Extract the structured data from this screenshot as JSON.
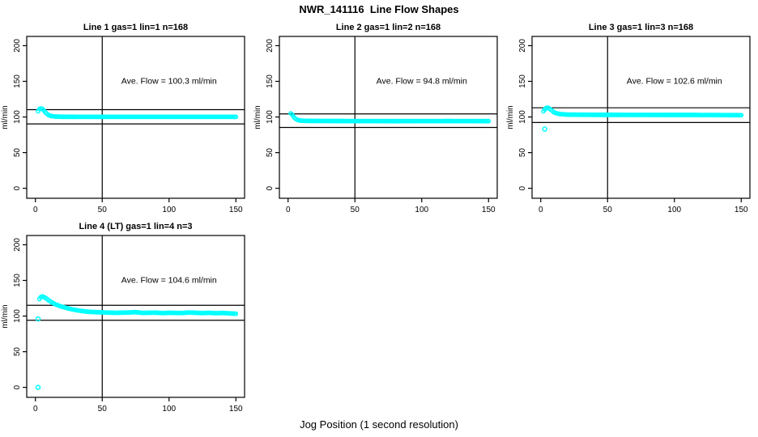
{
  "title": "NWR_141116  Line Flow Shapes",
  "xlabel": "Jog Position (1 second resolution)",
  "colors": {
    "points": "#00FFFF",
    "axis": "#000000",
    "background": "#FFFFFF"
  },
  "chart_data": {
    "type": "scatter",
    "ylabel": "ml/min",
    "x_ticks": [
      0,
      50,
      100,
      150
    ],
    "y_ticks": [
      0,
      50,
      100,
      150,
      200
    ],
    "xlim": [
      -6.5,
      156.5
    ],
    "ylim": [
      -14,
      213
    ],
    "vline_x": 50,
    "annotation_anchor": {
      "x": 100,
      "y": 150
    },
    "panels": [
      {
        "title": "Line 1 gas=1 lin=1 n=168",
        "annotation": "Ave. Flow =  100.3  ml/min",
        "ave_flow": 100.3,
        "n": 168,
        "ref_lines": [
          110.3,
          90.3
        ],
        "outliers": [],
        "curve": [
          [
            2,
            108
          ],
          [
            3,
            111
          ],
          [
            4,
            112
          ],
          [
            5,
            111.5
          ],
          [
            6,
            110
          ],
          [
            7,
            107.5
          ],
          [
            8,
            105.5
          ],
          [
            9,
            104
          ],
          [
            10,
            102.5
          ],
          [
            12,
            101.3
          ],
          [
            15,
            100.6
          ],
          [
            20,
            100.3
          ],
          [
            40,
            100.2
          ],
          [
            80,
            100.2
          ],
          [
            120,
            100.2
          ],
          [
            150,
            100.2
          ]
        ]
      },
      {
        "title": "Line 2 gas=1 lin=2 n=168",
        "annotation": "Ave. Flow =  94.8  ml/min",
        "ave_flow": 94.8,
        "n": 168,
        "ref_lines": [
          104.3,
          85.3
        ],
        "outliers": [],
        "curve": [
          [
            2,
            105
          ],
          [
            3,
            103.5
          ],
          [
            4,
            100.5
          ],
          [
            5,
            98.5
          ],
          [
            6,
            97
          ],
          [
            7,
            96
          ],
          [
            8,
            95.3
          ],
          [
            10,
            94.8
          ],
          [
            15,
            94.5
          ],
          [
            40,
            94.3
          ],
          [
            80,
            94.2
          ],
          [
            120,
            94.3
          ],
          [
            150,
            94.2
          ]
        ]
      },
      {
        "title": "Line 3 gas=1 lin=3 n=168",
        "annotation": "Ave. Flow =  102.6  ml/min",
        "ave_flow": 102.6,
        "n": 168,
        "ref_lines": [
          112.9,
          92.3
        ],
        "outliers": [
          [
            3,
            83
          ]
        ],
        "curve": [
          [
            2,
            108
          ],
          [
            3,
            110.5
          ],
          [
            4,
            112.5
          ],
          [
            5,
            113
          ],
          [
            6,
            112.5
          ],
          [
            7,
            111
          ],
          [
            8,
            109.5
          ],
          [
            9,
            108
          ],
          [
            10,
            106.5
          ],
          [
            12,
            105
          ],
          [
            15,
            104
          ],
          [
            20,
            103.3
          ],
          [
            40,
            103
          ],
          [
            80,
            102.9
          ],
          [
            120,
            102.8
          ],
          [
            150,
            102.5
          ]
        ]
      },
      {
        "title": "Line 4 (LT) gas=1 lin=4 n=3",
        "annotation": "Ave. Flow =  104.6  ml/min",
        "ave_flow": 104.6,
        "n": 3,
        "ref_lines": [
          115.1,
          94.1
        ],
        "outliers": [
          [
            2,
            96
          ],
          [
            2,
            0
          ]
        ],
        "curve": [
          [
            3,
            124
          ],
          [
            4,
            126.5
          ],
          [
            5,
            127.5
          ],
          [
            6,
            127
          ],
          [
            7,
            126
          ],
          [
            8,
            125
          ],
          [
            10,
            122
          ],
          [
            12,
            119.5
          ],
          [
            15,
            116.5
          ],
          [
            18,
            114.2
          ],
          [
            21,
            112.5
          ],
          [
            25,
            110.5
          ],
          [
            30,
            108.5
          ],
          [
            35,
            107
          ],
          [
            40,
            106
          ],
          [
            45,
            105.5
          ],
          [
            50,
            105.2
          ],
          [
            55,
            104.8
          ],
          [
            60,
            104.6
          ],
          [
            70,
            105
          ],
          [
            75,
            105.5
          ],
          [
            80,
            104.5
          ],
          [
            90,
            104.8
          ],
          [
            95,
            104.2
          ],
          [
            100,
            104.6
          ],
          [
            110,
            104.3
          ],
          [
            115,
            105
          ],
          [
            120,
            104.6
          ],
          [
            125,
            104.2
          ],
          [
            130,
            104.6
          ],
          [
            135,
            104
          ],
          [
            140,
            104.4
          ],
          [
            145,
            103.8
          ],
          [
            150,
            103.3
          ]
        ]
      }
    ]
  }
}
